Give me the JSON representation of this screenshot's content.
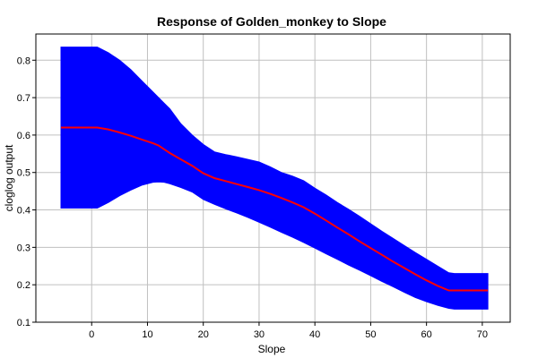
{
  "chart_data": {
    "type": "area",
    "title": "Response of Golden_monkey to Slope",
    "xlabel": "Slope",
    "ylabel": "cloglog output",
    "xlim": [
      -10,
      75
    ],
    "ylim": [
      0.1,
      0.87
    ],
    "xticks": [
      0,
      10,
      20,
      30,
      40,
      50,
      60,
      70
    ],
    "yticks": [
      0.1,
      0.2,
      0.3,
      0.4,
      0.5,
      0.6,
      0.7,
      0.8
    ],
    "grid": true,
    "colors": {
      "band": "#0000ff",
      "line": "#ff0000",
      "grid": "#c0c0c0",
      "axis": "#000000"
    },
    "x": [
      -5.5,
      0,
      1,
      3,
      5,
      7,
      9,
      11,
      12,
      13,
      14,
      16,
      18,
      20,
      22,
      24,
      26,
      28,
      30,
      32,
      34,
      36,
      38,
      40,
      42,
      44,
      46,
      48,
      50,
      52,
      54,
      56,
      58,
      60,
      62,
      64,
      65,
      71
    ],
    "series": [
      {
        "values": [
          0.62,
          0.62,
          0.62,
          0.615,
          0.607,
          0.598,
          0.588,
          0.578,
          0.572,
          0.562,
          0.552,
          0.535,
          0.518,
          0.498,
          0.485,
          0.477,
          0.469,
          0.461,
          0.453,
          0.443,
          0.432,
          0.42,
          0.407,
          0.39,
          0.372,
          0.353,
          0.335,
          0.316,
          0.298,
          0.28,
          0.262,
          0.245,
          0.228,
          0.212,
          0.197,
          0.185,
          0.185,
          0.185
        ]
      },
      {
        "values": [
          0.835,
          0.835,
          0.835,
          0.82,
          0.8,
          0.775,
          0.745,
          0.715,
          0.7,
          0.685,
          0.67,
          0.63,
          0.6,
          0.575,
          0.555,
          0.548,
          0.542,
          0.535,
          0.528,
          0.515,
          0.5,
          0.49,
          0.478,
          0.458,
          0.44,
          0.42,
          0.402,
          0.383,
          0.363,
          0.343,
          0.324,
          0.305,
          0.286,
          0.268,
          0.25,
          0.232,
          0.23,
          0.23
        ]
      },
      {
        "values": [
          0.405,
          0.405,
          0.405,
          0.42,
          0.438,
          0.453,
          0.466,
          0.474,
          0.475,
          0.474,
          0.47,
          0.46,
          0.448,
          0.428,
          0.415,
          0.403,
          0.392,
          0.38,
          0.367,
          0.354,
          0.34,
          0.327,
          0.313,
          0.298,
          0.283,
          0.268,
          0.253,
          0.239,
          0.224,
          0.209,
          0.195,
          0.18,
          0.166,
          0.155,
          0.145,
          0.137,
          0.135,
          0.135
        ]
      }
    ]
  }
}
